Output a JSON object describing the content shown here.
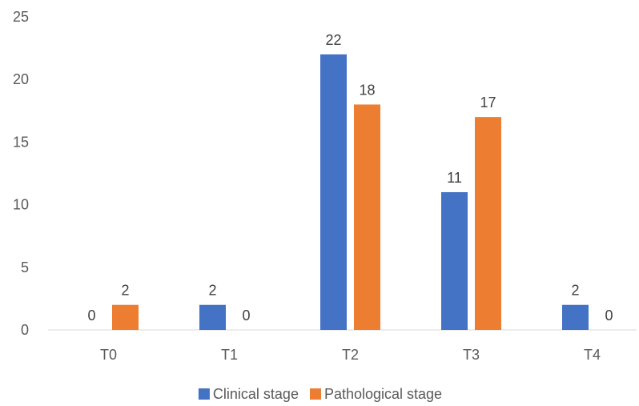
{
  "chart_data": {
    "type": "bar",
    "categories": [
      "T0",
      "T1",
      "T2",
      "T3",
      "T4"
    ],
    "series": [
      {
        "name": "Clinical stage",
        "values": [
          0,
          2,
          22,
          11,
          2
        ],
        "color": "#4472C4"
      },
      {
        "name": "Pathological stage",
        "values": [
          2,
          0,
          18,
          17,
          0
        ],
        "color": "#ED7D31"
      }
    ],
    "ylim": [
      0,
      25
    ],
    "yticks": [
      0,
      5,
      10,
      15,
      20,
      25
    ],
    "grid": false,
    "legend": "bottom",
    "data_labels": true,
    "axis_color": "#D9D9D9",
    "text_color": "#595959"
  }
}
